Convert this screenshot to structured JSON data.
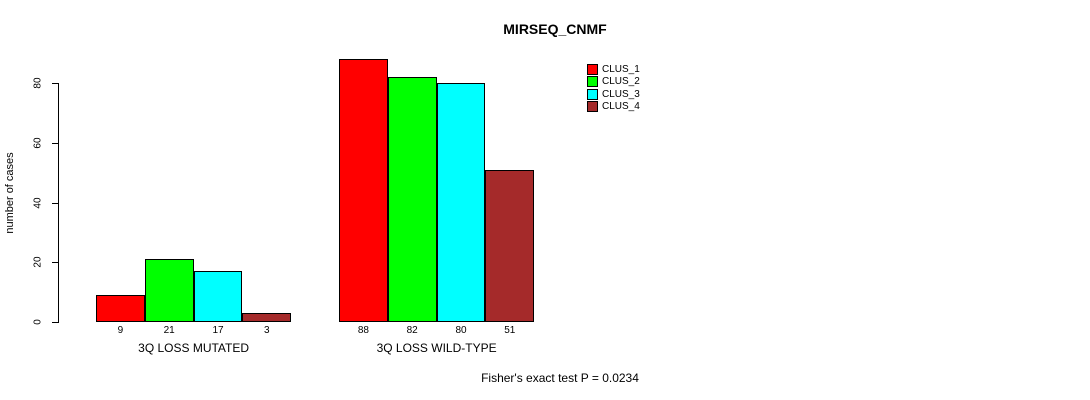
{
  "title": "MIRSEQ_CNMF",
  "y_axis": {
    "label": "number of cases"
  },
  "footer": {
    "stat_text": "Fisher's exact test P = 0.0234"
  },
  "legend": {
    "position": "right-top"
  },
  "chart_data": {
    "type": "bar",
    "title": "MIRSEQ_CNMF",
    "xlabel": "",
    "ylabel": "number of cases",
    "categories": [
      "3Q LOSS MUTATED",
      "3Q LOSS WILD-TYPE"
    ],
    "series": [
      {
        "name": "CLUS_1",
        "color": "#FF0000",
        "values": [
          9,
          88
        ]
      },
      {
        "name": "CLUS_2",
        "color": "#00FF00",
        "values": [
          21,
          82
        ]
      },
      {
        "name": "CLUS_3",
        "color": "#00FFFF",
        "values": [
          17,
          80
        ]
      },
      {
        "name": "CLUS_4",
        "color": "#A52A2A",
        "values": [
          3,
          51
        ]
      }
    ],
    "bar_value_labels": [
      [
        9,
        21,
        17,
        3
      ],
      [
        88,
        82,
        80,
        51
      ]
    ],
    "yticks": [
      0,
      20,
      40,
      60,
      80
    ],
    "ylim": [
      0,
      88
    ],
    "grid": false,
    "legend_position": "right-top",
    "annotation": "Fisher's exact test P = 0.0234"
  }
}
